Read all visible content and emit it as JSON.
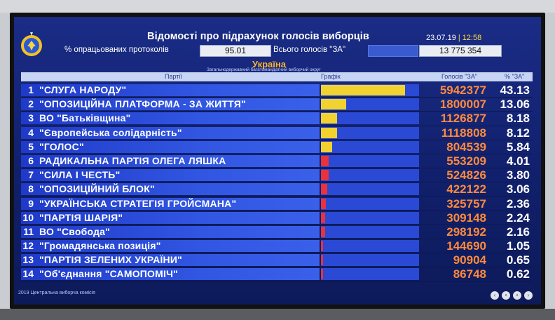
{
  "header": {
    "title": "Відомості про підрахунок голосів виборців",
    "date": "23.07.19",
    "time": "12:58"
  },
  "stats": {
    "processed_label": "% опрацьованих протоколів",
    "processed_value": "95.01",
    "total_za_label": "Всього голосів \"ЗА\"",
    "total_za_value": "13 775 354"
  },
  "region": {
    "name": "Україна",
    "subtitle": "Загальнодержавний багатомандатний виборчий округ"
  },
  "table": {
    "col_party": "Партії",
    "col_graph": "Графік",
    "col_votes": "Голосів \"ЗА\"",
    "col_pct": "% \"ЗА\""
  },
  "colors": {
    "bar_major": "#f2d22e",
    "bar_minor": "#e8323c",
    "votes_text": "#ff8a3c"
  },
  "parties": [
    {
      "num": "1",
      "name": "\"СЛУГА НАРОДУ\"",
      "votes": "5942377",
      "pct": "43.13",
      "share": 43.13
    },
    {
      "num": "2",
      "name": "\"ОПОЗИЦІЙНА ПЛАТФОРМА - ЗА ЖИТТЯ\"",
      "votes": "1800007",
      "pct": "13.06",
      "share": 13.06
    },
    {
      "num": "3",
      "name": "ВО \"Батьківщина\"",
      "votes": "1126877",
      "pct": "8.18",
      "share": 8.18
    },
    {
      "num": "4",
      "name": "\"Європейська солідарність\"",
      "votes": "1118808",
      "pct": "8.12",
      "share": 8.12
    },
    {
      "num": "5",
      "name": "\"ГОЛОС\"",
      "votes": "804539",
      "pct": "5.84",
      "share": 5.84
    },
    {
      "num": "6",
      "name": "РАДИКАЛЬНА ПАРТІЯ ОЛЕГА ЛЯШКА",
      "votes": "553209",
      "pct": "4.01",
      "share": 4.01
    },
    {
      "num": "7",
      "name": "\"СИЛА І ЧЕСТЬ\"",
      "votes": "524826",
      "pct": "3.80",
      "share": 3.8
    },
    {
      "num": "8",
      "name": "\"ОПОЗИЦІЙНИЙ БЛОК\"",
      "votes": "422122",
      "pct": "3.06",
      "share": 3.06
    },
    {
      "num": "9",
      "name": "\"УКРАЇНСЬКА СТРАТЕГІЯ ГРОЙСМАНА\"",
      "votes": "325757",
      "pct": "2.36",
      "share": 2.36
    },
    {
      "num": "10",
      "name": "\"ПАРТІЯ ШАРІЯ\"",
      "votes": "309148",
      "pct": "2.24",
      "share": 2.24
    },
    {
      "num": "11",
      "name": "ВО \"Свобода\"",
      "votes": "298192",
      "pct": "2.16",
      "share": 2.16
    },
    {
      "num": "12",
      "name": "\"Громадянська позиція\"",
      "votes": "144690",
      "pct": "1.05",
      "share": 1.05
    },
    {
      "num": "13",
      "name": "\"ПАРТІЯ ЗЕЛЕНИХ УКРАЇНИ\"",
      "votes": "90904",
      "pct": "0.65",
      "share": 0.65
    },
    {
      "num": "14",
      "name": "\"Об'єднання \"САМОПОМІЧ\"",
      "votes": "86748",
      "pct": "0.62",
      "share": 0.62
    }
  ],
  "footer": {
    "text": "2019 Центральна виборча комісія"
  }
}
